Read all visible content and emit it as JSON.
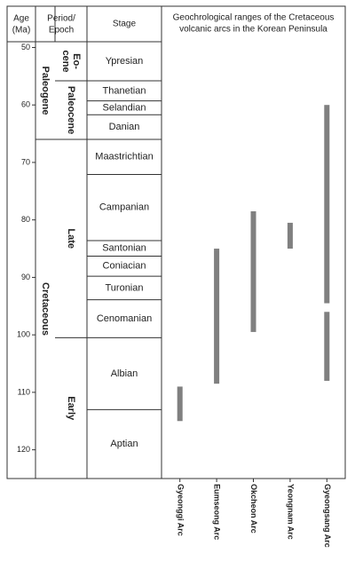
{
  "chart_data": {
    "type": "bar",
    "title": "Geochrological ranges of the Cretaceous volcanic arcs in the Korean Peninsula",
    "headers": {
      "age": [
        "Age",
        "(Ma)"
      ],
      "period_epoch": [
        "Period/",
        "Epoch"
      ],
      "stage": "Stage",
      "ranges": [
        "Geochrological ranges of the Cretaceous",
        "volcanic arcs in the Korean Peninsula"
      ]
    },
    "age_axis": {
      "min": 49,
      "max": 125,
      "ticks": [
        50,
        60,
        70,
        80,
        90,
        100,
        110,
        120
      ]
    },
    "periods": [
      {
        "name": "Paleogene",
        "start": 49,
        "end": 66
      },
      {
        "name": "Cretaceous",
        "start": 66,
        "end": 125
      }
    ],
    "epochs": [
      {
        "name": [
          "Eo-",
          "cene"
        ],
        "start": 49,
        "end": 55.8
      },
      {
        "name": [
          "Paleocene"
        ],
        "start": 55.8,
        "end": 66
      },
      {
        "name": [
          "Late"
        ],
        "start": 66,
        "end": 100.5
      },
      {
        "name": [
          "Early"
        ],
        "start": 100.5,
        "end": 125
      }
    ],
    "stages": [
      {
        "name": "Ypresian",
        "start": 49,
        "end": 55.8
      },
      {
        "name": "Thanetian",
        "start": 55.8,
        "end": 59.3
      },
      {
        "name": "Selandian",
        "start": 59.3,
        "end": 61.7
      },
      {
        "name": "Danian",
        "start": 61.7,
        "end": 66
      },
      {
        "name": "Maastrichtian",
        "start": 66,
        "end": 72.1
      },
      {
        "name": "Campanian",
        "start": 72.1,
        "end": 83.6
      },
      {
        "name": "Santonian",
        "start": 83.6,
        "end": 86.3
      },
      {
        "name": "Coniacian",
        "start": 86.3,
        "end": 89.8
      },
      {
        "name": "Turonian",
        "start": 89.8,
        "end": 93.9
      },
      {
        "name": "Cenomanian",
        "start": 93.9,
        "end": 100.5
      },
      {
        "name": "Albian",
        "start": 100.5,
        "end": 113
      },
      {
        "name": "Aptian",
        "start": 113,
        "end": 125
      }
    ],
    "series": [
      {
        "name": "Gyeonggi Arc",
        "ranges": [
          [
            109,
            115
          ]
        ]
      },
      {
        "name": "Eumseong Arc",
        "ranges": [
          [
            85,
            108.5
          ]
        ]
      },
      {
        "name": "Okcheon Arc",
        "ranges": [
          [
            78.5,
            99.5
          ]
        ]
      },
      {
        "name": "Yeongnam Arc",
        "ranges": [
          [
            80.5,
            85
          ]
        ]
      },
      {
        "name": "Gyeongsang Arc",
        "ranges": [
          [
            60,
            94.5
          ],
          [
            96,
            108
          ]
        ]
      }
    ],
    "bar_color": "#808080"
  }
}
